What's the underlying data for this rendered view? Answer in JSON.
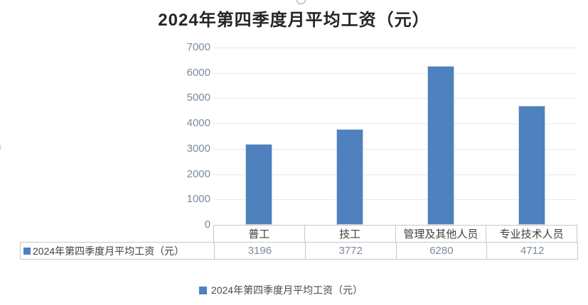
{
  "title": "2024年第四季度月平均工资（元）",
  "legend": {
    "marker": "blue-square",
    "label": "2024年第四季度月平均工资（元）"
  },
  "data_table": {
    "row_label": "2024年第四季度月平均工资（元）",
    "columns": [
      "普工",
      "技工",
      "管理及其他人员",
      "专业技术人员"
    ],
    "values": [
      "3196",
      "3772",
      "6280",
      "4712"
    ]
  },
  "chart_data": {
    "type": "bar",
    "title": "2024年第四季度月平均工资（元）",
    "categories": [
      "普工",
      "技工",
      "管理及其他人员",
      "专业技术人员"
    ],
    "series": [
      {
        "name": "2024年第四季度月平均工资（元）",
        "values": [
          3196,
          3772,
          6280,
          4712
        ]
      }
    ],
    "xlabel": "",
    "ylabel": "",
    "ylim": [
      0,
      7000
    ],
    "yticks": [
      0,
      1000,
      2000,
      3000,
      4000,
      5000,
      6000,
      7000
    ],
    "grid": true,
    "legend_position": "bottom",
    "data_table_shown": true
  },
  "colors": {
    "bar": "#4E81BD",
    "bar_border": "#c9d9eb",
    "gridline": "#e8e8e8",
    "table_border": "#c8c8c8",
    "number_text": "#7b8aa0",
    "label_text": "#3f3f3f",
    "title_text": "#262626"
  },
  "stray_marks": {
    "left_partial_paren": ")"
  }
}
